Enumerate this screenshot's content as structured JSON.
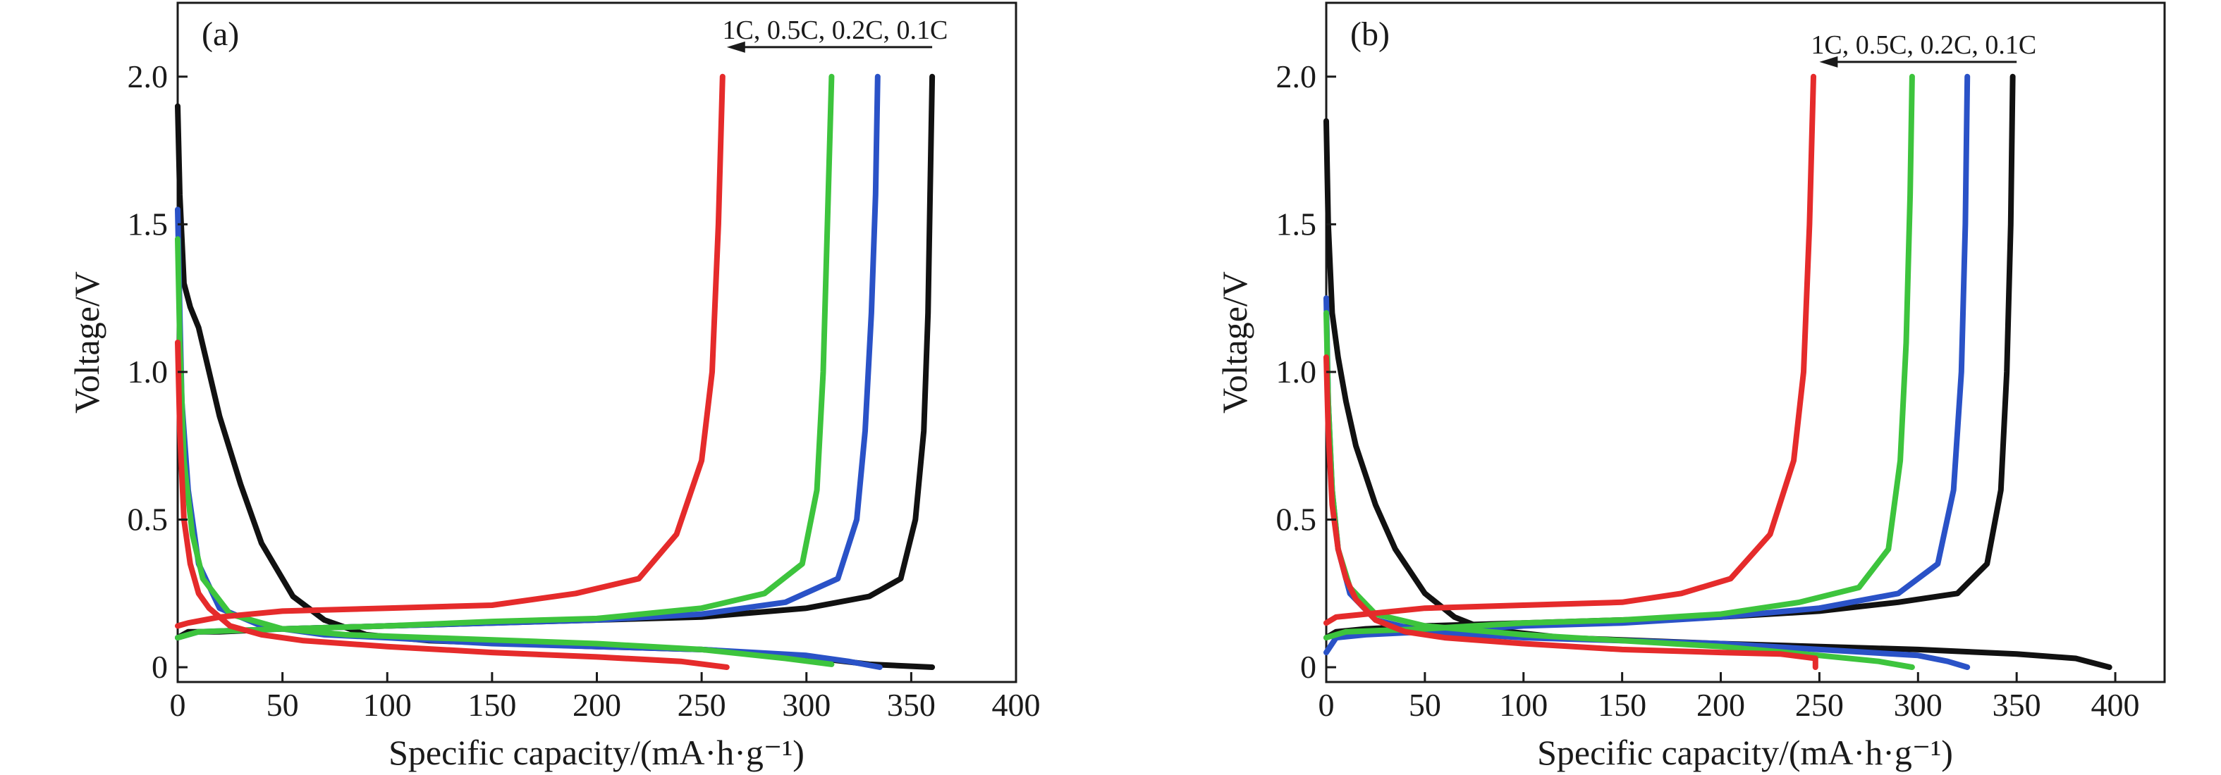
{
  "chart_data": [
    {
      "type": "line",
      "panel_label": "(a)",
      "xlabel": "Specific capacity/(mA·h·g⁻¹)",
      "ylabel": "Voltage/V",
      "xlim": [
        0,
        400
      ],
      "ylim": [
        -0.05,
        2.25
      ],
      "xticks": [
        0,
        50,
        100,
        150,
        200,
        250,
        300,
        350,
        400
      ],
      "yticks": [
        0,
        0.5,
        1.0,
        1.5,
        2.0
      ],
      "xtick_labels": [
        "0",
        "50",
        "100",
        "150",
        "200",
        "250",
        "300",
        "350",
        "400"
      ],
      "ytick_labels": [
        "0",
        "0.5",
        "1.0",
        "1.5",
        "2.0"
      ],
      "annotation": {
        "text": "1C, 0.5C, 0.2C, 0.1C",
        "arrow_from": [
          360,
          2.1
        ],
        "arrow_to": [
          262,
          2.1
        ]
      },
      "grid": false,
      "series": [
        {
          "color": "#111111",
          "discharge": [
            [
              0,
              1.9
            ],
            [
              1,
              1.6
            ],
            [
              3,
              1.3
            ],
            [
              6,
              1.22
            ],
            [
              10,
              1.15
            ],
            [
              15,
              1.0
            ],
            [
              20,
              0.85
            ],
            [
              30,
              0.62
            ],
            [
              40,
              0.42
            ],
            [
              55,
              0.24
            ],
            [
              70,
              0.16
            ],
            [
              90,
              0.11
            ],
            [
              120,
              0.09
            ],
            [
              160,
              0.08
            ],
            [
              200,
              0.07
            ],
            [
              250,
              0.06
            ],
            [
              300,
              0.035
            ],
            [
              330,
              0.01
            ],
            [
              360,
              0.0
            ]
          ],
          "charge": [
            [
              0,
              0.1
            ],
            [
              5,
              0.12
            ],
            [
              20,
              0.12
            ],
            [
              50,
              0.13
            ],
            [
              100,
              0.14
            ],
            [
              150,
              0.15
            ],
            [
              200,
              0.16
            ],
            [
              250,
              0.17
            ],
            [
              300,
              0.2
            ],
            [
              330,
              0.24
            ],
            [
              345,
              0.3
            ],
            [
              352,
              0.5
            ],
            [
              356,
              0.8
            ],
            [
              358,
              1.2
            ],
            [
              359,
              1.6
            ],
            [
              360,
              2.0
            ]
          ]
        },
        {
          "color": "#2a52c7",
          "discharge": [
            [
              0,
              1.55
            ],
            [
              1,
              1.2
            ],
            [
              2,
              0.9
            ],
            [
              5,
              0.6
            ],
            [
              10,
              0.35
            ],
            [
              20,
              0.2
            ],
            [
              40,
              0.14
            ],
            [
              70,
              0.11
            ],
            [
              100,
              0.1
            ],
            [
              150,
              0.08
            ],
            [
              200,
              0.07
            ],
            [
              250,
              0.06
            ],
            [
              300,
              0.04
            ],
            [
              320,
              0.02
            ],
            [
              335,
              0.0
            ]
          ],
          "charge": [
            [
              0,
              0.1
            ],
            [
              10,
              0.12
            ],
            [
              50,
              0.13
            ],
            [
              100,
              0.14
            ],
            [
              150,
              0.15
            ],
            [
              200,
              0.16
            ],
            [
              250,
              0.18
            ],
            [
              290,
              0.22
            ],
            [
              315,
              0.3
            ],
            [
              324,
              0.5
            ],
            [
              328,
              0.8
            ],
            [
              331,
              1.2
            ],
            [
              333,
              1.6
            ],
            [
              334,
              2.0
            ]
          ]
        },
        {
          "color": "#3dc43d",
          "discharge": [
            [
              0,
              1.45
            ],
            [
              1,
              1.1
            ],
            [
              3,
              0.7
            ],
            [
              7,
              0.45
            ],
            [
              12,
              0.3
            ],
            [
              25,
              0.18
            ],
            [
              50,
              0.13
            ],
            [
              80,
              0.11
            ],
            [
              120,
              0.1
            ],
            [
              160,
              0.09
            ],
            [
              200,
              0.08
            ],
            [
              250,
              0.06
            ],
            [
              290,
              0.03
            ],
            [
              312,
              0.01
            ]
          ],
          "charge": [
            [
              0,
              0.1
            ],
            [
              10,
              0.12
            ],
            [
              50,
              0.13
            ],
            [
              100,
              0.14
            ],
            [
              150,
              0.155
            ],
            [
              200,
              0.165
            ],
            [
              250,
              0.2
            ],
            [
              280,
              0.25
            ],
            [
              298,
              0.35
            ],
            [
              305,
              0.6
            ],
            [
              308,
              1.0
            ],
            [
              310,
              1.5
            ],
            [
              312,
              2.0
            ]
          ]
        },
        {
          "color": "#e52b2b",
          "discharge": [
            [
              0,
              1.1
            ],
            [
              1,
              0.8
            ],
            [
              3,
              0.5
            ],
            [
              6,
              0.35
            ],
            [
              10,
              0.25
            ],
            [
              15,
              0.2
            ],
            [
              25,
              0.14
            ],
            [
              40,
              0.11
            ],
            [
              60,
              0.09
            ],
            [
              100,
              0.07
            ],
            [
              150,
              0.05
            ],
            [
              200,
              0.035
            ],
            [
              240,
              0.02
            ],
            [
              262,
              0.0
            ]
          ],
          "charge": [
            [
              0,
              0.14
            ],
            [
              5,
              0.15
            ],
            [
              20,
              0.17
            ],
            [
              50,
              0.19
            ],
            [
              100,
              0.2
            ],
            [
              150,
              0.21
            ],
            [
              190,
              0.25
            ],
            [
              220,
              0.3
            ],
            [
              238,
              0.45
            ],
            [
              250,
              0.7
            ],
            [
              255,
              1.0
            ],
            [
              258,
              1.5
            ],
            [
              260,
              2.0
            ]
          ]
        }
      ]
    },
    {
      "type": "line",
      "panel_label": "(b)",
      "xlabel": "Specific capacity/(mA·h·g⁻¹)",
      "ylabel": "Voltage/V",
      "xlim": [
        0,
        425
      ],
      "ylim": [
        -0.05,
        2.25
      ],
      "xticks": [
        0,
        50,
        100,
        150,
        200,
        250,
        300,
        350,
        400
      ],
      "yticks": [
        0,
        0.5,
        1.0,
        1.5,
        2.0
      ],
      "xtick_labels": [
        "0",
        "50",
        "100",
        "150",
        "200",
        "250",
        "300",
        "350",
        "400"
      ],
      "ytick_labels": [
        "0",
        "0.5",
        "1.0",
        "1.5",
        "2.0"
      ],
      "annotation": {
        "text": "1C, 0.5C, 0.2C, 0.1C",
        "arrow_from": [
          350,
          2.05
        ],
        "arrow_to": [
          250,
          2.05
        ]
      },
      "grid": false,
      "series": [
        {
          "color": "#111111",
          "discharge": [
            [
              0,
              1.85
            ],
            [
              1,
              1.5
            ],
            [
              3,
              1.2
            ],
            [
              6,
              1.05
            ],
            [
              10,
              0.9
            ],
            [
              15,
              0.75
            ],
            [
              25,
              0.55
            ],
            [
              35,
              0.4
            ],
            [
              50,
              0.25
            ],
            [
              65,
              0.17
            ],
            [
              80,
              0.13
            ],
            [
              120,
              0.1
            ],
            [
              200,
              0.08
            ],
            [
              300,
              0.06
            ],
            [
              350,
              0.045
            ],
            [
              380,
              0.03
            ],
            [
              397,
              0.0
            ]
          ],
          "charge": [
            [
              0,
              0.1
            ],
            [
              5,
              0.12
            ],
            [
              20,
              0.13
            ],
            [
              50,
              0.14
            ],
            [
              100,
              0.15
            ],
            [
              150,
              0.16
            ],
            [
              200,
              0.17
            ],
            [
              250,
              0.19
            ],
            [
              290,
              0.22
            ],
            [
              320,
              0.25
            ],
            [
              335,
              0.35
            ],
            [
              342,
              0.6
            ],
            [
              345,
              1.0
            ],
            [
              347,
              1.5
            ],
            [
              348,
              2.0
            ]
          ]
        },
        {
          "color": "#2a52c7",
          "discharge": [
            [
              0,
              1.25
            ],
            [
              1,
              0.9
            ],
            [
              3,
              0.6
            ],
            [
              6,
              0.4
            ],
            [
              12,
              0.25
            ],
            [
              25,
              0.16
            ],
            [
              50,
              0.12
            ],
            [
              100,
              0.1
            ],
            [
              150,
              0.09
            ],
            [
              200,
              0.08
            ],
            [
              250,
              0.06
            ],
            [
              300,
              0.04
            ],
            [
              315,
              0.02
            ],
            [
              325,
              0.0
            ]
          ],
          "charge": [
            [
              0,
              0.05
            ],
            [
              5,
              0.1
            ],
            [
              20,
              0.11
            ],
            [
              50,
              0.12
            ],
            [
              100,
              0.14
            ],
            [
              150,
              0.15
            ],
            [
              200,
              0.17
            ],
            [
              250,
              0.2
            ],
            [
              290,
              0.25
            ],
            [
              310,
              0.35
            ],
            [
              318,
              0.6
            ],
            [
              322,
              1.0
            ],
            [
              324,
              1.5
            ],
            [
              325,
              2.0
            ]
          ]
        },
        {
          "color": "#3dc43d",
          "discharge": [
            [
              0,
              1.2
            ],
            [
              1,
              0.9
            ],
            [
              3,
              0.6
            ],
            [
              6,
              0.4
            ],
            [
              12,
              0.27
            ],
            [
              25,
              0.18
            ],
            [
              50,
              0.14
            ],
            [
              100,
              0.11
            ],
            [
              150,
              0.09
            ],
            [
              200,
              0.07
            ],
            [
              250,
              0.04
            ],
            [
              280,
              0.02
            ],
            [
              297,
              0.0
            ]
          ],
          "charge": [
            [
              0,
              0.1
            ],
            [
              10,
              0.12
            ],
            [
              50,
              0.13
            ],
            [
              100,
              0.15
            ],
            [
              150,
              0.16
            ],
            [
              200,
              0.18
            ],
            [
              240,
              0.22
            ],
            [
              270,
              0.27
            ],
            [
              285,
              0.4
            ],
            [
              291,
              0.7
            ],
            [
              294,
              1.1
            ],
            [
              296,
              1.6
            ],
            [
              297,
              2.0
            ]
          ]
        },
        {
          "color": "#e52b2b",
          "discharge": [
            [
              0,
              1.05
            ],
            [
              1,
              0.8
            ],
            [
              3,
              0.55
            ],
            [
              6,
              0.4
            ],
            [
              10,
              0.3
            ],
            [
              15,
              0.23
            ],
            [
              25,
              0.16
            ],
            [
              40,
              0.12
            ],
            [
              60,
              0.1
            ],
            [
              100,
              0.08
            ],
            [
              150,
              0.06
            ],
            [
              200,
              0.05
            ],
            [
              230,
              0.045
            ],
            [
              248,
              0.03
            ],
            [
              248,
              0.0
            ]
          ],
          "charge": [
            [
              0,
              0.15
            ],
            [
              5,
              0.17
            ],
            [
              20,
              0.18
            ],
            [
              50,
              0.2
            ],
            [
              100,
              0.21
            ],
            [
              150,
              0.22
            ],
            [
              180,
              0.25
            ],
            [
              205,
              0.3
            ],
            [
              225,
              0.45
            ],
            [
              237,
              0.7
            ],
            [
              242,
              1.0
            ],
            [
              245,
              1.5
            ],
            [
              247,
              2.0
            ]
          ]
        }
      ]
    }
  ]
}
